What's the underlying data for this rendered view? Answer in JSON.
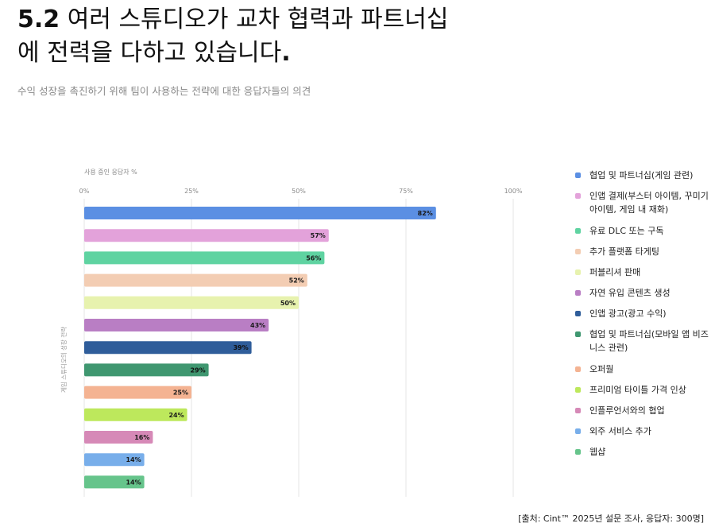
{
  "header": {
    "title_number": "5.2",
    "title_text": "여러 스튜디오가 교차 협력과 파트너십에 전력을 다하고 있습니다",
    "title_period": ".",
    "subtitle": "수익 성장을 촉진하기 위해 팀이 사용하는 전략에 대한 응답자들의 의견"
  },
  "footer": {
    "source": "[출처: Cint™ 2025년 설문 조사, 응답자: 300명]"
  },
  "chart_data": {
    "type": "bar",
    "orientation": "horizontal",
    "xlabel": "사용 중인 응답자 %",
    "ylabel": "게임 스튜디오의 성장 전략",
    "xlim": [
      0,
      100
    ],
    "x_ticks": [
      "0%",
      "25%",
      "50%",
      "75%",
      "100%"
    ],
    "x_tick_values": [
      0,
      25,
      50,
      75,
      100
    ],
    "grid": true,
    "legend_position": "right",
    "bars": [
      {
        "label": "협업 및 파트너십(게임 관련)",
        "value": 82,
        "value_label": "82%",
        "color": "#5b8fe3"
      },
      {
        "label": "인앱 결제(부스터 아이템, 꾸미기 아이템, 게임 내 재화)",
        "value": 57,
        "value_label": "57%",
        "color": "#e3a2da"
      },
      {
        "label": "유료 DLC 또는 구독",
        "value": 56,
        "value_label": "56%",
        "color": "#5fd3a1"
      },
      {
        "label": "추가 플랫폼 타게팅",
        "value": 52,
        "value_label": "52%",
        "color": "#f3cdb3"
      },
      {
        "label": "퍼블리셔 판매",
        "value": 50,
        "value_label": "50%",
        "color": "#e7f2ae"
      },
      {
        "label": "자연 유입 콘텐츠 생성",
        "value": 43,
        "value_label": "43%",
        "color": "#b97ec4"
      },
      {
        "label": "인앱 광고(광고 수익)",
        "value": 39,
        "value_label": "39%",
        "color": "#2f5d9a"
      },
      {
        "label": "협업 및 파트너십(모바일 앱 비즈니스 관련)",
        "value": 29,
        "value_label": "29%",
        "color": "#3f9770"
      },
      {
        "label": "오퍼월",
        "value": 25,
        "value_label": "25%",
        "color": "#f4b392"
      },
      {
        "label": "프리미엄 타이틀 가격 인상",
        "value": 24,
        "value_label": "24%",
        "color": "#bde85c"
      },
      {
        "label": "인플루언서와의 협업",
        "value": 16,
        "value_label": "16%",
        "color": "#d689b7"
      },
      {
        "label": "외주 서비스 추가",
        "value": 14,
        "value_label": "14%",
        "color": "#78aeea"
      },
      {
        "label": "웹샵",
        "value": 14,
        "value_label": "14%",
        "color": "#66c48b"
      }
    ]
  }
}
